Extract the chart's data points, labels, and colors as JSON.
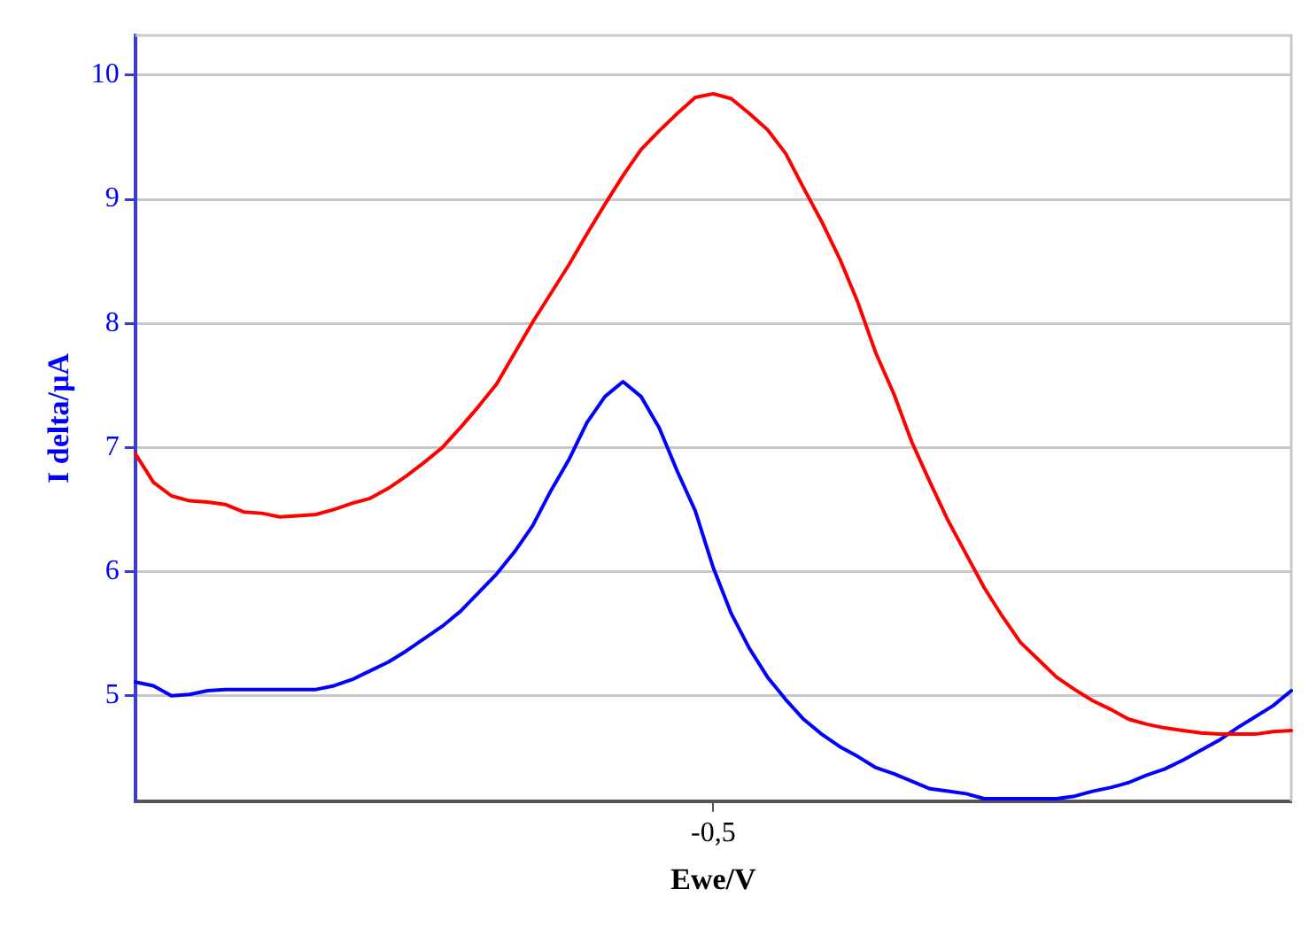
{
  "chart_data": {
    "type": "line",
    "xlabel": "Ewe/V",
    "ylabel": "I delta/µA",
    "categories": [
      null,
      null,
      null,
      null,
      null,
      null,
      null,
      null,
      null,
      null,
      null,
      null,
      null,
      null,
      null,
      null,
      null,
      null,
      null,
      null,
      null,
      null,
      null,
      null,
      null,
      null,
      null,
      null,
      null,
      null,
      null,
      null,
      "-0,5",
      null,
      null,
      null,
      null,
      null,
      null,
      null,
      null,
      null,
      null,
      null,
      null,
      null,
      null,
      null,
      null,
      null,
      null,
      null,
      null,
      null,
      null,
      null,
      null,
      null,
      null,
      null,
      null,
      null,
      null,
      null,
      null
    ],
    "series": [
      {
        "color": "#ff0000",
        "values": [
          6.95,
          6.72,
          6.61,
          6.57,
          6.56,
          6.54,
          6.48,
          6.47,
          6.44,
          6.45,
          6.46,
          6.5,
          6.55,
          6.59,
          6.67,
          6.77,
          6.88,
          7.0,
          7.16,
          7.33,
          7.51,
          7.76,
          8.01,
          8.24,
          8.47,
          8.72,
          8.96,
          9.19,
          9.4,
          9.55,
          9.69,
          9.82,
          9.85,
          9.81,
          9.69,
          9.56,
          9.37,
          9.09,
          8.82,
          8.52,
          8.17,
          7.76,
          7.43,
          7.04,
          6.72,
          6.41,
          6.14,
          5.87,
          5.64,
          5.43,
          5.29,
          5.15,
          5.05,
          4.96,
          4.89,
          4.81,
          4.77,
          4.74,
          4.72,
          4.7,
          4.69,
          4.69,
          4.69,
          4.71,
          4.72
        ]
      },
      {
        "color": "#0000ff",
        "values": [
          5.11,
          5.08,
          5.0,
          5.01,
          5.04,
          5.05,
          5.05,
          5.05,
          5.05,
          5.05,
          5.05,
          5.08,
          5.13,
          5.2,
          5.27,
          5.36,
          5.46,
          5.56,
          5.68,
          5.83,
          5.98,
          6.16,
          6.37,
          6.65,
          6.9,
          7.2,
          7.41,
          7.53,
          7.41,
          7.16,
          6.81,
          6.49,
          6.03,
          5.66,
          5.38,
          5.15,
          4.97,
          4.81,
          4.69,
          4.59,
          4.51,
          4.42,
          4.37,
          4.31,
          4.25,
          4.23,
          4.21,
          4.17,
          4.17,
          4.17,
          4.17,
          4.17,
          4.19,
          4.23,
          4.26,
          4.3,
          4.36,
          4.41,
          4.48,
          4.56,
          4.64,
          4.74,
          4.83,
          4.92,
          5.04
        ]
      }
    ],
    "ylim": [
      4.15,
      10.32
    ],
    "yticks": [
      5,
      6,
      7,
      8,
      9,
      10
    ],
    "grid": "y",
    "legend": false,
    "marker": "none",
    "line_style": "solid"
  }
}
